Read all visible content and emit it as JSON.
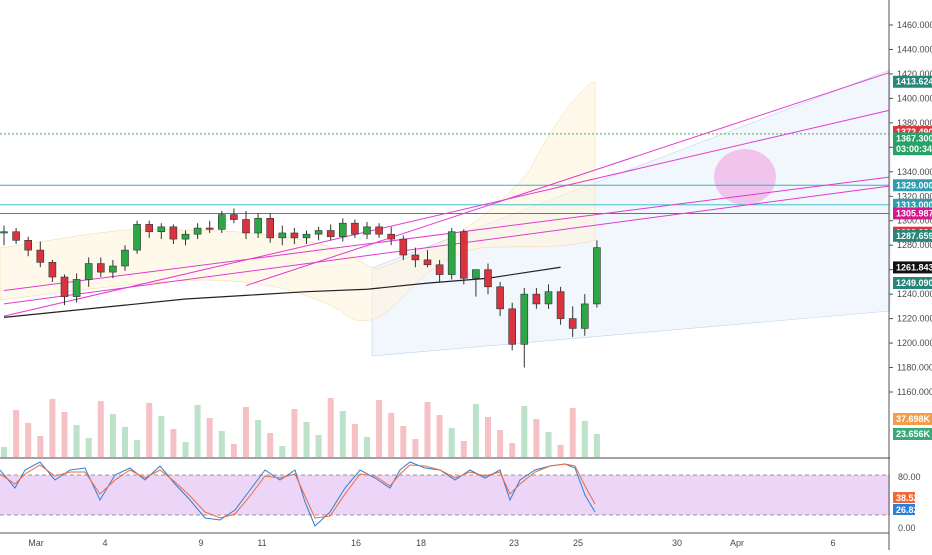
{
  "chart_data": {
    "type": "candlestick",
    "price_axis": {
      "ticks": [
        1160,
        1180,
        1200,
        1220,
        1240,
        1260,
        1280,
        1300,
        1320,
        1340,
        1360,
        1380,
        1400,
        1420,
        1440,
        1460
      ],
      "tick_labels": [
        "1160.000",
        "1180.000",
        "1200.000",
        "1220.000",
        "1240.000",
        "1260.000",
        "1280.000",
        "1300.000",
        "1320.000",
        "1340.000",
        "1360.000",
        "1380.000",
        "1400.000",
        "1420.000",
        "1440.000",
        "1460.000"
      ],
      "ylim": [
        1111,
        1477
      ]
    },
    "time_axis": {
      "labels": [
        "Mar",
        "4",
        "9",
        "11",
        "16",
        "18",
        "23",
        "25",
        "30",
        "Apr",
        "6"
      ]
    },
    "price_badges": [
      {
        "label": "1413.624",
        "value": 1413.624,
        "color": "#26867a"
      },
      {
        "label": "1372.490",
        "value": 1372.49,
        "color": "#e0343e"
      },
      {
        "label": "1367.300",
        "value": 1367.3,
        "color": "#26a269"
      },
      {
        "label": "03:00:34",
        "value": 1358.5,
        "color": "#26a269"
      },
      {
        "label": "1329.000",
        "value": 1329.0,
        "color": "#2e9eae"
      },
      {
        "label": "1313.000",
        "value": 1313.0,
        "color": "#2e9eae"
      },
      {
        "label": "1305.987",
        "value": 1305.987,
        "color": "#d4198f"
      },
      {
        "label": "1290.224",
        "value": 1290.224,
        "color": "#e0343e"
      },
      {
        "label": "1287.659",
        "value": 1287.659,
        "color": "#26867a"
      },
      {
        "label": "1261.843",
        "value": 1261.843,
        "color": "#111111"
      },
      {
        "label": "1249.090",
        "value": 1249.09,
        "color": "#26867a"
      }
    ],
    "volume_badges": [
      {
        "label": "37.698K",
        "color": "#f39c4b"
      },
      {
        "label": "23.656K",
        "color": "#3aaa7a"
      }
    ],
    "horizontal_levels": [
      {
        "value": 1371.0,
        "color": "#4caf50",
        "dash": "2,2"
      },
      {
        "value": 1329.0,
        "color": "#29b6c9"
      },
      {
        "value": 1313.0,
        "color": "#29b6c9"
      },
      {
        "value": 1305.987,
        "color": "#d4198f"
      }
    ],
    "trend_lines": [
      {
        "x": [
          0,
          60
        ],
        "y": [
          1222,
          1360
        ],
        "color": "#e23bd0"
      },
      {
        "x": [
          20,
          60
        ],
        "y": [
          1247,
          1378
        ],
        "color": "#e23bd0"
      },
      {
        "x": [
          0,
          60
        ],
        "y": [
          1232,
          1311
        ],
        "color": "#e23bd0"
      },
      {
        "x": [
          0,
          60
        ],
        "y": [
          1243,
          1319
        ],
        "color": "#e23bd0"
      }
    ],
    "moving_average": {
      "x": [
        0,
        5,
        10,
        15,
        20,
        25,
        30,
        35,
        40,
        46
      ],
      "y": [
        1221,
        1226,
        1231,
        1236,
        1239,
        1242,
        1244,
        1249,
        1253,
        1262
      ],
      "color": "#222222"
    },
    "candles": [
      {
        "x": 0,
        "o": 1290,
        "h": 1296,
        "l": 1280,
        "c": 1291
      },
      {
        "x": 1,
        "o": 1291,
        "h": 1294,
        "l": 1281,
        "c": 1284
      },
      {
        "x": 2,
        "o": 1284,
        "h": 1287,
        "l": 1271,
        "c": 1276
      },
      {
        "x": 3,
        "o": 1276,
        "h": 1283,
        "l": 1262,
        "c": 1266
      },
      {
        "x": 4,
        "o": 1266,
        "h": 1268,
        "l": 1250,
        "c": 1254
      },
      {
        "x": 5,
        "o": 1254,
        "h": 1256,
        "l": 1231,
        "c": 1238
      },
      {
        "x": 6,
        "o": 1238,
        "h": 1257,
        "l": 1233,
        "c": 1252
      },
      {
        "x": 7,
        "o": 1252,
        "h": 1270,
        "l": 1246,
        "c": 1265
      },
      {
        "x": 8,
        "o": 1265,
        "h": 1270,
        "l": 1254,
        "c": 1258
      },
      {
        "x": 9,
        "o": 1258,
        "h": 1268,
        "l": 1253,
        "c": 1263
      },
      {
        "x": 10,
        "o": 1263,
        "h": 1280,
        "l": 1259,
        "c": 1276
      },
      {
        "x": 11,
        "o": 1276,
        "h": 1300,
        "l": 1273,
        "c": 1297
      },
      {
        "x": 12,
        "o": 1297,
        "h": 1300,
        "l": 1286,
        "c": 1291
      },
      {
        "x": 13,
        "o": 1291,
        "h": 1298,
        "l": 1285,
        "c": 1295
      },
      {
        "x": 14,
        "o": 1295,
        "h": 1297,
        "l": 1281,
        "c": 1285
      },
      {
        "x": 15,
        "o": 1285,
        "h": 1292,
        "l": 1280,
        "c": 1289
      },
      {
        "x": 16,
        "o": 1289,
        "h": 1298,
        "l": 1285,
        "c": 1294
      },
      {
        "x": 17,
        "o": 1294,
        "h": 1300,
        "l": 1290,
        "c": 1293
      },
      {
        "x": 18,
        "o": 1293,
        "h": 1308,
        "l": 1290,
        "c": 1305
      },
      {
        "x": 19,
        "o": 1305,
        "h": 1310,
        "l": 1298,
        "c": 1301
      },
      {
        "x": 20,
        "o": 1301,
        "h": 1308,
        "l": 1285,
        "c": 1290
      },
      {
        "x": 21,
        "o": 1290,
        "h": 1306,
        "l": 1286,
        "c": 1302
      },
      {
        "x": 22,
        "o": 1302,
        "h": 1306,
        "l": 1282,
        "c": 1286
      },
      {
        "x": 23,
        "o": 1286,
        "h": 1296,
        "l": 1280,
        "c": 1290
      },
      {
        "x": 24,
        "o": 1290,
        "h": 1294,
        "l": 1281,
        "c": 1286
      },
      {
        "x": 25,
        "o": 1286,
        "h": 1292,
        "l": 1281,
        "c": 1289
      },
      {
        "x": 26,
        "o": 1289,
        "h": 1295,
        "l": 1284,
        "c": 1292
      },
      {
        "x": 27,
        "o": 1292,
        "h": 1297,
        "l": 1284,
        "c": 1287
      },
      {
        "x": 28,
        "o": 1287,
        "h": 1302,
        "l": 1283,
        "c": 1298
      },
      {
        "x": 29,
        "o": 1298,
        "h": 1301,
        "l": 1286,
        "c": 1289
      },
      {
        "x": 30,
        "o": 1289,
        "h": 1299,
        "l": 1285,
        "c": 1295
      },
      {
        "x": 31,
        "o": 1295,
        "h": 1298,
        "l": 1286,
        "c": 1289
      },
      {
        "x": 32,
        "o": 1289,
        "h": 1295,
        "l": 1280,
        "c": 1285
      },
      {
        "x": 33,
        "o": 1285,
        "h": 1288,
        "l": 1268,
        "c": 1272
      },
      {
        "x": 34,
        "o": 1272,
        "h": 1278,
        "l": 1262,
        "c": 1268
      },
      {
        "x": 35,
        "o": 1268,
        "h": 1276,
        "l": 1262,
        "c": 1264
      },
      {
        "x": 36,
        "o": 1264,
        "h": 1268,
        "l": 1250,
        "c": 1256
      },
      {
        "x": 37,
        "o": 1256,
        "h": 1294,
        "l": 1252,
        "c": 1291
      },
      {
        "x": 38,
        "o": 1291,
        "h": 1293,
        "l": 1248,
        "c": 1253
      },
      {
        "x": 39,
        "o": 1253,
        "h": 1260,
        "l": 1238,
        "c": 1260
      },
      {
        "x": 40,
        "o": 1260,
        "h": 1265,
        "l": 1240,
        "c": 1246
      },
      {
        "x": 41,
        "o": 1246,
        "h": 1250,
        "l": 1222,
        "c": 1228
      },
      {
        "x": 42,
        "o": 1228,
        "h": 1233,
        "l": 1194,
        "c": 1199
      },
      {
        "x": 43,
        "o": 1199,
        "h": 1245,
        "l": 1180,
        "c": 1240
      },
      {
        "x": 44,
        "o": 1240,
        "h": 1245,
        "l": 1228,
        "c": 1232
      },
      {
        "x": 45,
        "o": 1232,
        "h": 1248,
        "l": 1228,
        "c": 1242
      },
      {
        "x": 46,
        "o": 1242,
        "h": 1246,
        "l": 1215,
        "c": 1220
      },
      {
        "x": 47,
        "o": 1220,
        "h": 1230,
        "l": 1205,
        "c": 1212
      },
      {
        "x": 48,
        "o": 1212,
        "h": 1240,
        "l": 1206,
        "c": 1232
      },
      {
        "x": 49,
        "o": 1232,
        "h": 1284,
        "l": 1229,
        "c": 1278
      }
    ]
  }
}
